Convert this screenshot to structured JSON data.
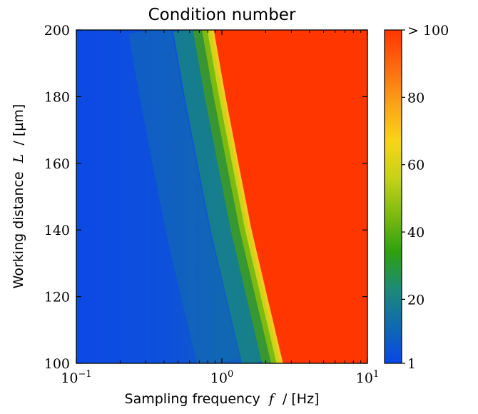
{
  "chart_data": {
    "type": "heatmap",
    "title": "Condition number",
    "xlabel": {
      "prefix": "Sampling frequency",
      "symbol": "f",
      "suffix": "/ [Hz]"
    },
    "ylabel": {
      "prefix": "Working distance",
      "symbol": "L",
      "suffix": "/ [µm]"
    },
    "x_scale": "log",
    "xlim": [
      0.1,
      10
    ],
    "ylim": [
      100,
      200
    ],
    "x_ticks": [
      {
        "value": 0.1,
        "base": "10",
        "exp": "−1"
      },
      {
        "value": 1,
        "base": "10",
        "exp": "0"
      },
      {
        "value": 10,
        "base": "10",
        "exp": "1"
      }
    ],
    "y_ticks": [
      {
        "value": 100,
        "label": "100"
      },
      {
        "value": 120,
        "label": "120"
      },
      {
        "value": 140,
        "label": "140"
      },
      {
        "value": 160,
        "label": "160"
      },
      {
        "value": 180,
        "label": "180"
      },
      {
        "value": 200,
        "label": "200"
      }
    ],
    "colorbar": {
      "range": [
        1,
        100
      ],
      "ticks": [
        {
          "value": 1,
          "label": "1"
        },
        {
          "value": 20,
          "label": "20"
        },
        {
          "value": 40,
          "label": "40"
        },
        {
          "value": 60,
          "label": "60"
        },
        {
          "value": 80,
          "label": "80"
        },
        {
          "value": 100,
          "label": "> 100"
        }
      ],
      "colors": [
        "#0a46e6",
        "#0f6ab0",
        "#1c8a78",
        "#2ea010",
        "#7cba12",
        "#c6d21a",
        "#f7d41a",
        "#fba21a",
        "#fb6a10",
        "#ff3600"
      ]
    },
    "threshold_boundary": {
      "description_value": 100,
      "points": [
        {
          "L": 100,
          "f": 2.63
        },
        {
          "L": 120,
          "f": 2.05
        },
        {
          "L": 140,
          "f": 1.6
        },
        {
          "L": 160,
          "f": 1.3
        },
        {
          "L": 180,
          "f": 1.06
        },
        {
          "L": 200,
          "f": 0.88
        }
      ]
    },
    "grid": false
  }
}
